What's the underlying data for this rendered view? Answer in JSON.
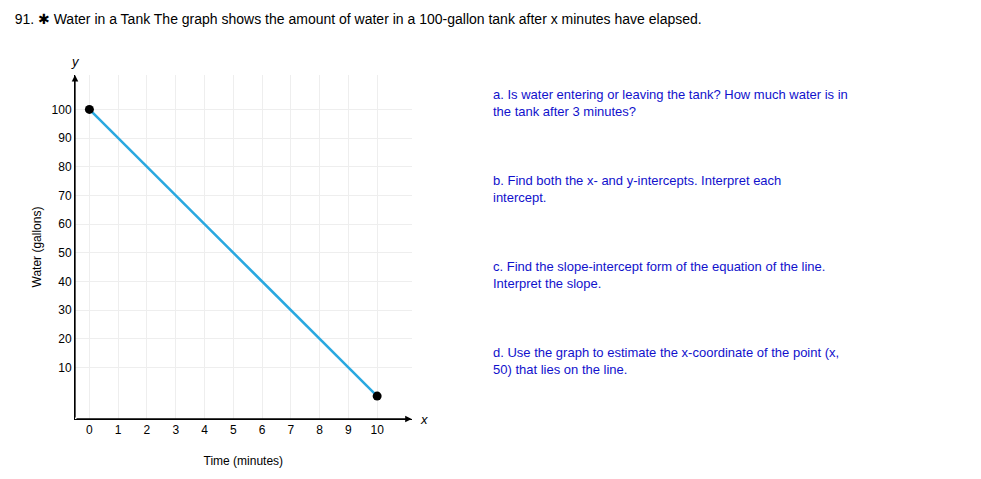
{
  "chart_data": {
    "type": "line",
    "title": "91. ✱ Water in a Tank The graph shows the amount of water in a 100-gallon tank after x minutes have elapsed.",
    "xlabel": "Time (minutes)",
    "ylabel": "Water (gallons)",
    "x": [
      0,
      10
    ],
    "series": [
      {
        "type": "line",
        "color": "#29a8e0",
        "values": [
          100,
          0
        ]
      },
      {
        "type": "scatter",
        "color": "#000000",
        "marker": "circle",
        "values": [
          100,
          0
        ]
      }
    ],
    "xlim": [
      -0.5,
      11.2
    ],
    "ylim": [
      -8,
      112
    ],
    "xticks": [
      0,
      1,
      2,
      3,
      4,
      5,
      6,
      7,
      8,
      9,
      10
    ],
    "yticks": [
      10,
      20,
      30,
      40,
      50,
      60,
      70,
      80,
      90,
      100
    ],
    "grid": true,
    "annotations": [
      "x",
      "y",
      "a. Is water entering or leaving the tank? How much water is in the tank after 3 minutes?",
      "b. Find both the x- and y-intercepts. Interpret each intercept.",
      "c. Find the slope-intercept form of the equation of the line. Interpret the slope.",
      "d. Use the graph to estimate the x-coordinate of the point (x, 50) that lies on the line."
    ]
  }
}
